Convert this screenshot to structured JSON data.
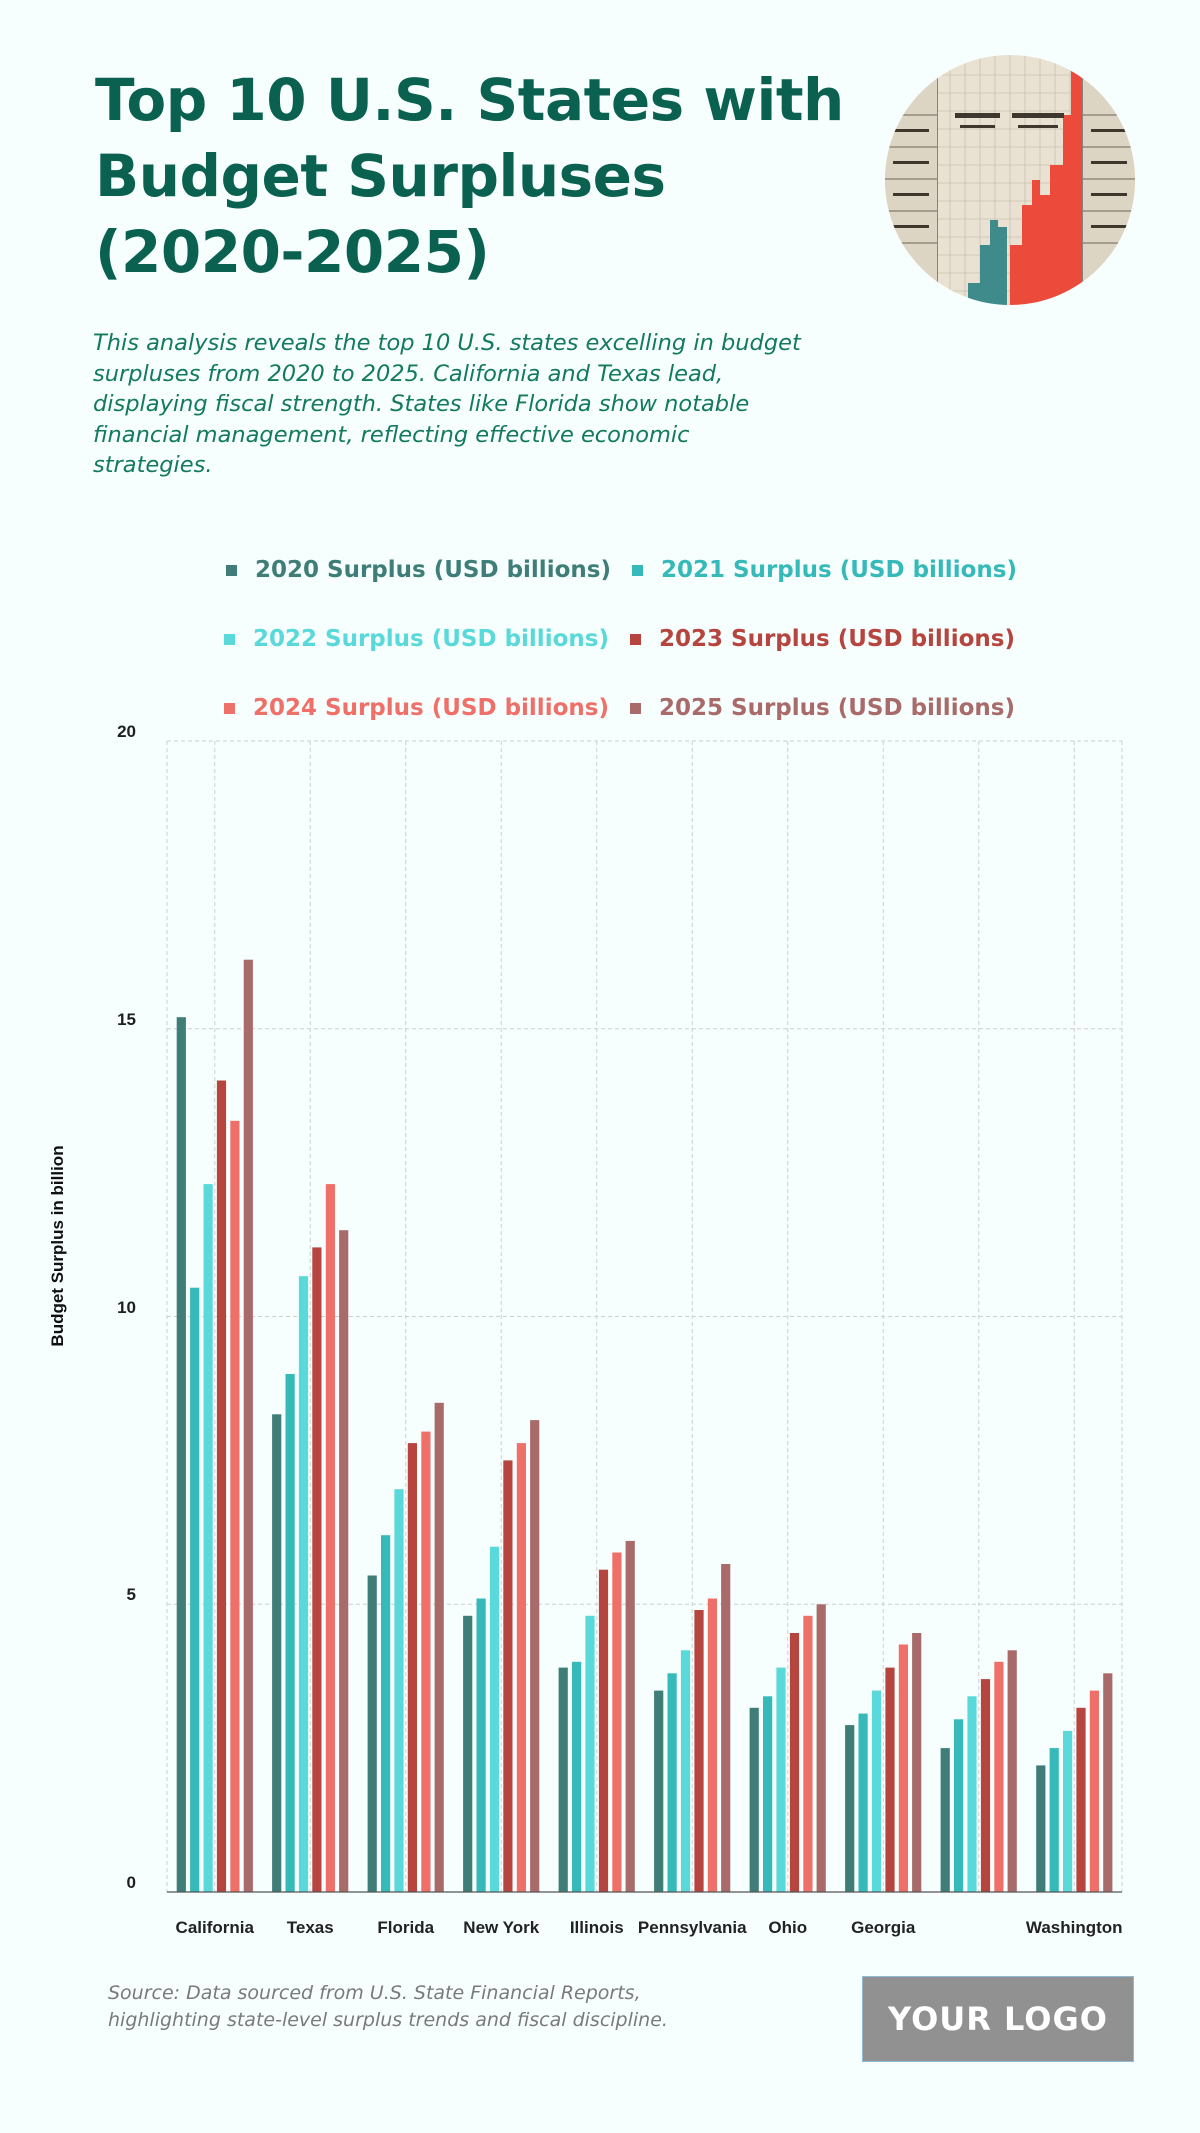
{
  "header": {
    "title_lines": [
      "Top 10 U.S. States with",
      "Budget Surpluses",
      "(2020-2025)"
    ],
    "description_lines": [
      "This analysis reveals the top 10 U.S. states excelling in budget",
      "surpluses from 2020 to 2025. California and Texas lead,",
      "displaying fiscal strength. States like Florida show notable",
      "financial management, reflecting effective economic",
      "strategies."
    ],
    "hero_image_icon": "vintage-bar-chart-photo"
  },
  "footer": {
    "source_lines": [
      "Source: Data sourced from U.S. State Financial Reports,",
      "highlighting state-level surplus trends and fiscal discipline."
    ],
    "logo_text": "YOUR LOGO"
  },
  "colors": {
    "title": "#0b6150",
    "description": "#137a5d",
    "background": "#f6fefe"
  },
  "chart_data": {
    "type": "bar",
    "title": "Top 10 U.S. States with Budget Surpluses (2020-2025)",
    "xlabel": "",
    "ylabel": "Budget Surplus in billion",
    "ylim": [
      0,
      20
    ],
    "yticks": [
      0,
      5,
      10,
      15,
      20
    ],
    "grid": true,
    "legend_position": "top",
    "categories": [
      "California",
      "Texas",
      "Florida",
      "New York",
      "Illinois",
      "Pennsylvania",
      "Ohio",
      "Georgia",
      "",
      "Washington"
    ],
    "series": [
      {
        "name": "2020 Surplus (USD billions)",
        "color": "#3f7d78",
        "values": [
          15.2,
          8.3,
          5.5,
          4.8,
          3.9,
          3.5,
          3.2,
          2.9,
          2.5,
          2.2
        ]
      },
      {
        "name": "2021 Surplus (USD billions)",
        "color": "#36b9b9",
        "values": [
          10.5,
          9.0,
          6.2,
          5.1,
          4.0,
          3.8,
          3.4,
          3.1,
          3.0,
          2.5
        ]
      },
      {
        "name": "2022 Surplus (USD billions)",
        "color": "#59d9d9",
        "values": [
          12.3,
          10.7,
          7.0,
          6.0,
          4.8,
          4.2,
          3.9,
          3.5,
          3.4,
          2.8
        ]
      },
      {
        "name": "2023 Surplus (USD billions)",
        "color": "#b5453e",
        "values": [
          14.1,
          11.2,
          7.8,
          7.5,
          5.6,
          4.9,
          4.5,
          3.9,
          3.7,
          3.2
        ]
      },
      {
        "name": "2024 Surplus (USD billions)",
        "color": "#ef6f69",
        "values": [
          13.4,
          12.3,
          8.0,
          7.8,
          5.9,
          5.1,
          4.8,
          4.3,
          4.0,
          3.5
        ]
      },
      {
        "name": "2025 Surplus (USD billions)",
        "color": "#a96b6a",
        "values": [
          16.2,
          11.5,
          8.5,
          8.2,
          6.1,
          5.7,
          5.0,
          4.5,
          4.2,
          3.8
        ]
      }
    ]
  }
}
